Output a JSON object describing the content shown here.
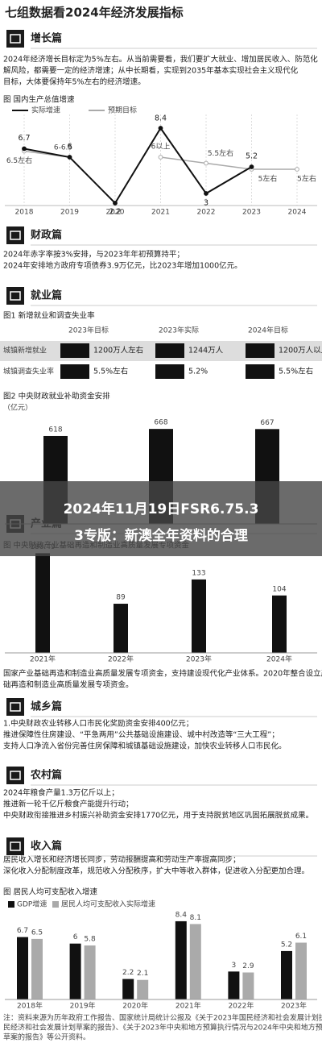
{
  "title": "七组数据看2024年经济发展指标",
  "overlay": [
    "2024年11月19日FSR6.75.3",
    "3专版：新澳全年资料的合理"
  ],
  "sections": [
    {
      "heading": "增长篇",
      "paragraphs": [
        "2024年经济增长目标定为5%左右。从当前需要看，我们要扩大就业、增加居民收入、防范化",
        "解风险，都需要一定的经济增速；从中长期看，实现到2035年基本实现社会主义现代化",
        "目标，大体要保持年5%左右的经济增速。"
      ],
      "chart": {
        "type": "line",
        "title": "图 国内生产总值增速",
        "categories": [
          "2018",
          "2019",
          "2020",
          "2021",
          "2022",
          "2023",
          "2024"
        ],
        "ylim": [
          2,
          9
        ],
        "series": [
          {
            "name": "实际增速",
            "color": "#111111",
            "values": [
              6.7,
              6.0,
              2.2,
              8.4,
              3.0,
              5.2,
              null
            ]
          },
          {
            "name": "预期目标",
            "color": "#aaaaaa",
            "values": [
              6.5,
              6.0,
              null,
              6.0,
              5.5,
              5.0,
              5.0
            ],
            "value_labels": [
              "6.5左右",
              "6-6.5",
              null,
              "6以上",
              "5.5左右",
              "5左右",
              "5左右"
            ]
          }
        ]
      }
    },
    {
      "heading": "财政篇",
      "paragraphs": [
        "2024年赤字率按3%安排，与2023年年初预算持平；",
        "2024年安排地方政府专项债券3.9万亿元，比2023年增加1000亿元。"
      ]
    },
    {
      "heading": "就业篇",
      "table": {
        "title": "图1 新增就业和调查失业率",
        "columns": [
          "2023年目标",
          "2023年实际",
          "2024年目标"
        ],
        "rows": [
          [
            "城镇新增就业",
            "1200万人左右",
            "1244万人",
            "1200万人以上"
          ],
          [
            "城镇调查失业率",
            "5.5%左右",
            "5.2%",
            "5.5%左右"
          ]
        ]
      },
      "chart": {
        "type": "bar",
        "title": "图2 中央财政就业补助资金安排",
        "subtitle": "（亿元）",
        "values": [
          618,
          668,
          667
        ],
        "color": "#111111",
        "ylim": [
          0,
          700
        ]
      }
    },
    {
      "heading": "产业篇",
      "chart": {
        "type": "bar",
        "title": "图 中央财政产业基础再造和制造业高质量发展专项资金",
        "categories": [
          "2021年",
          "2022年",
          "2023年",
          "2024年"
        ],
        "values": [
          180.49,
          89,
          133,
          104
        ],
        "color": "#111111",
        "ylim": [
          0,
          200
        ]
      },
      "paragraphs": [
        "国家产业基础再造和制造业高质量发展专项资金，支持建设现代化产业体系。2020年整合设立产业基",
        "础再造和制造业高质量发展专项资金。"
      ]
    },
    {
      "heading": "城乡篇",
      "paragraphs": [
        "1.中央财政农业转移人口市民化奖励资金安排400亿元；",
        "推进保障性住房建设、“平急两用”公共基础设施建设、城中村改造等“三大工程”；",
        "支持人口净流入省份完善住房保障和城镇基础设施建设，加快农业转移人口市民化。"
      ]
    },
    {
      "heading": "农村篇",
      "paragraphs": [
        "2024年粮食产量1.3万亿斤以上；",
        "推进新一轮千亿斤粮食产能提升行动；",
        "中央财政衔接推进乡村振兴补助资金安排1770亿元，用于支持脱贫地区巩固拓展脱贫成果。"
      ]
    },
    {
      "heading": "收入篇",
      "paragraphs": [
        "居民收入增长和经济增长同步，劳动报酬提高和劳动生产率提高同步；",
        "深化收入分配制度改革，规范收入分配秩序，扩大中等收入群体，促进收入分配更加合理。"
      ],
      "chart": {
        "type": "grouped_bar",
        "title": "图 居民人均可支配收入增速",
        "categories": [
          "2018年",
          "2019年",
          "2020年",
          "2021年",
          "2022年",
          "2023年"
        ],
        "ylim": [
          0,
          9
        ],
        "series": [
          {
            "name": "GDP增速",
            "color": "#111111",
            "values": [
              6.7,
              6.0,
              2.2,
              8.4,
              3.0,
              5.2
            ]
          },
          {
            "name": "居民人均可支配收入实际增速",
            "color": "#aaaaaa",
            "values": [
              6.5,
              5.8,
              2.1,
              8.1,
              2.9,
              6.1
            ]
          }
        ]
      },
      "notes": [
        "注：资料来源为历年政府工作报告、国家统计局统计公报及《关于2023年国民经济和社会发展计划执行情况与2024年国",
        "民经济和社会发展计划草案的报告》、《关于2023年中央和地方预算执行情况与2024年中央和地方预算",
        "草案的报告》等公开资料。"
      ]
    }
  ]
}
